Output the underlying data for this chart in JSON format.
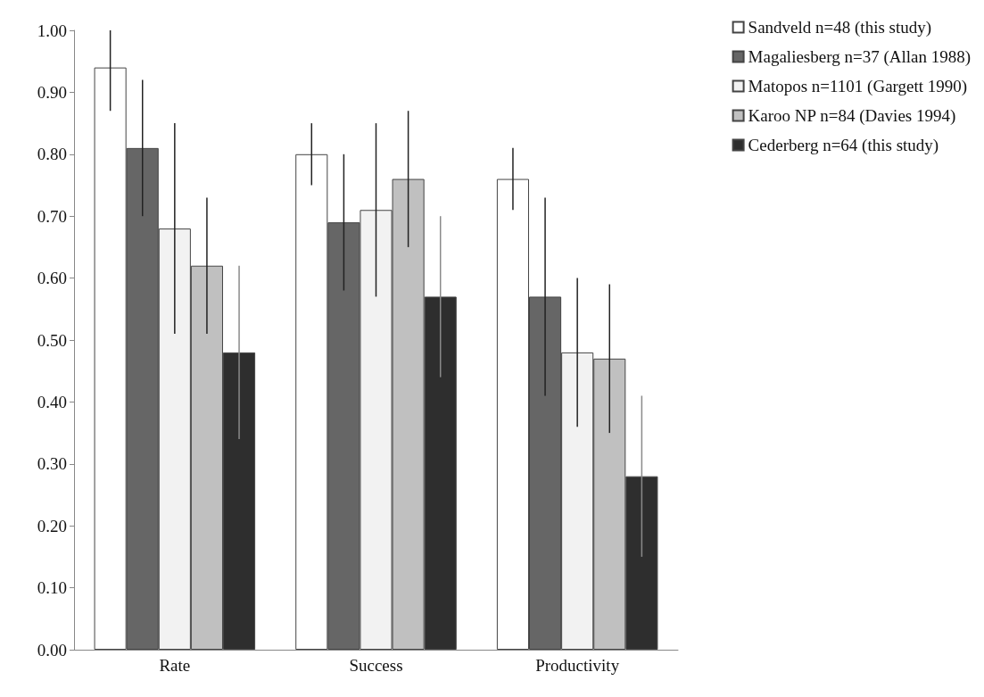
{
  "chart_data": {
    "type": "bar",
    "categories": [
      "Rate",
      "Success",
      "Productivity"
    ],
    "series": [
      {
        "name": "Sandveld n=48 (this study)",
        "color": "#ffffff",
        "values": [
          0.94,
          0.8,
          0.76
        ],
        "errors": [
          [
            0.87,
            1.0
          ],
          [
            0.75,
            0.85
          ],
          [
            0.71,
            0.81
          ]
        ]
      },
      {
        "name": "Magaliesberg n=37 (Allan 1988)",
        "color": "#666666",
        "values": [
          0.81,
          0.69,
          0.57
        ],
        "errors": [
          [
            0.7,
            0.92
          ],
          [
            0.58,
            0.8
          ],
          [
            0.41,
            0.73
          ]
        ]
      },
      {
        "name": "Matopos n=1101 (Gargett 1990)",
        "color": "#f2f2f2",
        "values": [
          0.68,
          0.71,
          0.48
        ],
        "errors": [
          [
            0.51,
            0.85
          ],
          [
            0.57,
            0.85
          ],
          [
            0.36,
            0.6
          ]
        ]
      },
      {
        "name": "Karoo NP n=84 (Davies 1994)",
        "color": "#c0c0c0",
        "values": [
          0.62,
          0.76,
          0.47
        ],
        "errors": [
          [
            0.51,
            0.73
          ],
          [
            0.65,
            0.87
          ],
          [
            0.35,
            0.59
          ]
        ]
      },
      {
        "name": "Cederberg n=64 (this study)",
        "color": "#2e2e2e",
        "values": [
          0.48,
          0.57,
          0.28
        ],
        "errors": [
          [
            0.34,
            0.62
          ],
          [
            0.44,
            0.7
          ],
          [
            0.15,
            0.41
          ]
        ]
      }
    ],
    "ylim": [
      0,
      1
    ],
    "yticks": [
      {
        "value": 0,
        "label": "0.00"
      },
      {
        "value": 0.1,
        "label": "0.10"
      },
      {
        "value": 0.2,
        "label": "0.20"
      },
      {
        "value": 0.3,
        "label": "0.30"
      },
      {
        "value": 0.4,
        "label": "0.40"
      },
      {
        "value": 0.5,
        "label": "0.50"
      },
      {
        "value": 0.6,
        "label": "0.60"
      },
      {
        "value": 0.7,
        "label": "0.70"
      },
      {
        "value": 0.8,
        "label": "0.80"
      },
      {
        "value": 0.9,
        "label": "0.90"
      },
      {
        "value": 1,
        "label": "1.00"
      }
    ],
    "grid": false,
    "legend": "top right"
  }
}
